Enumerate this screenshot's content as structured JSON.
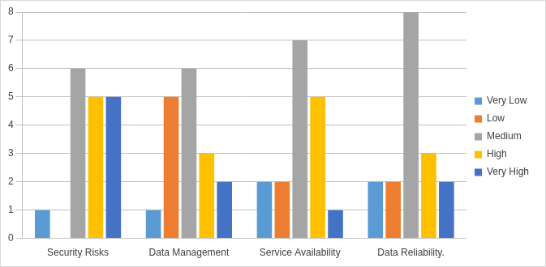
{
  "chart_data": {
    "type": "bar",
    "categories": [
      "Security Risks",
      "Data Management",
      "Service Availability",
      "Data Reliability."
    ],
    "series": [
      {
        "name": "Very Low",
        "color": "#5b9bd5",
        "values": [
          1,
          1,
          2,
          2
        ]
      },
      {
        "name": "Low",
        "color": "#ed7d31",
        "values": [
          0,
          5,
          2,
          2
        ]
      },
      {
        "name": "Medium",
        "color": "#a5a5a5",
        "values": [
          6,
          6,
          7,
          8
        ]
      },
      {
        "name": "High",
        "color": "#ffc000",
        "values": [
          5,
          3,
          5,
          3
        ]
      },
      {
        "name": "Very High",
        "color": "#4472c4",
        "values": [
          5,
          2,
          1,
          2
        ]
      }
    ],
    "ylim": [
      0,
      8
    ],
    "yticks": [
      0,
      1,
      2,
      3,
      4,
      5,
      6,
      7,
      8
    ],
    "grid": true,
    "legend": "right"
  }
}
